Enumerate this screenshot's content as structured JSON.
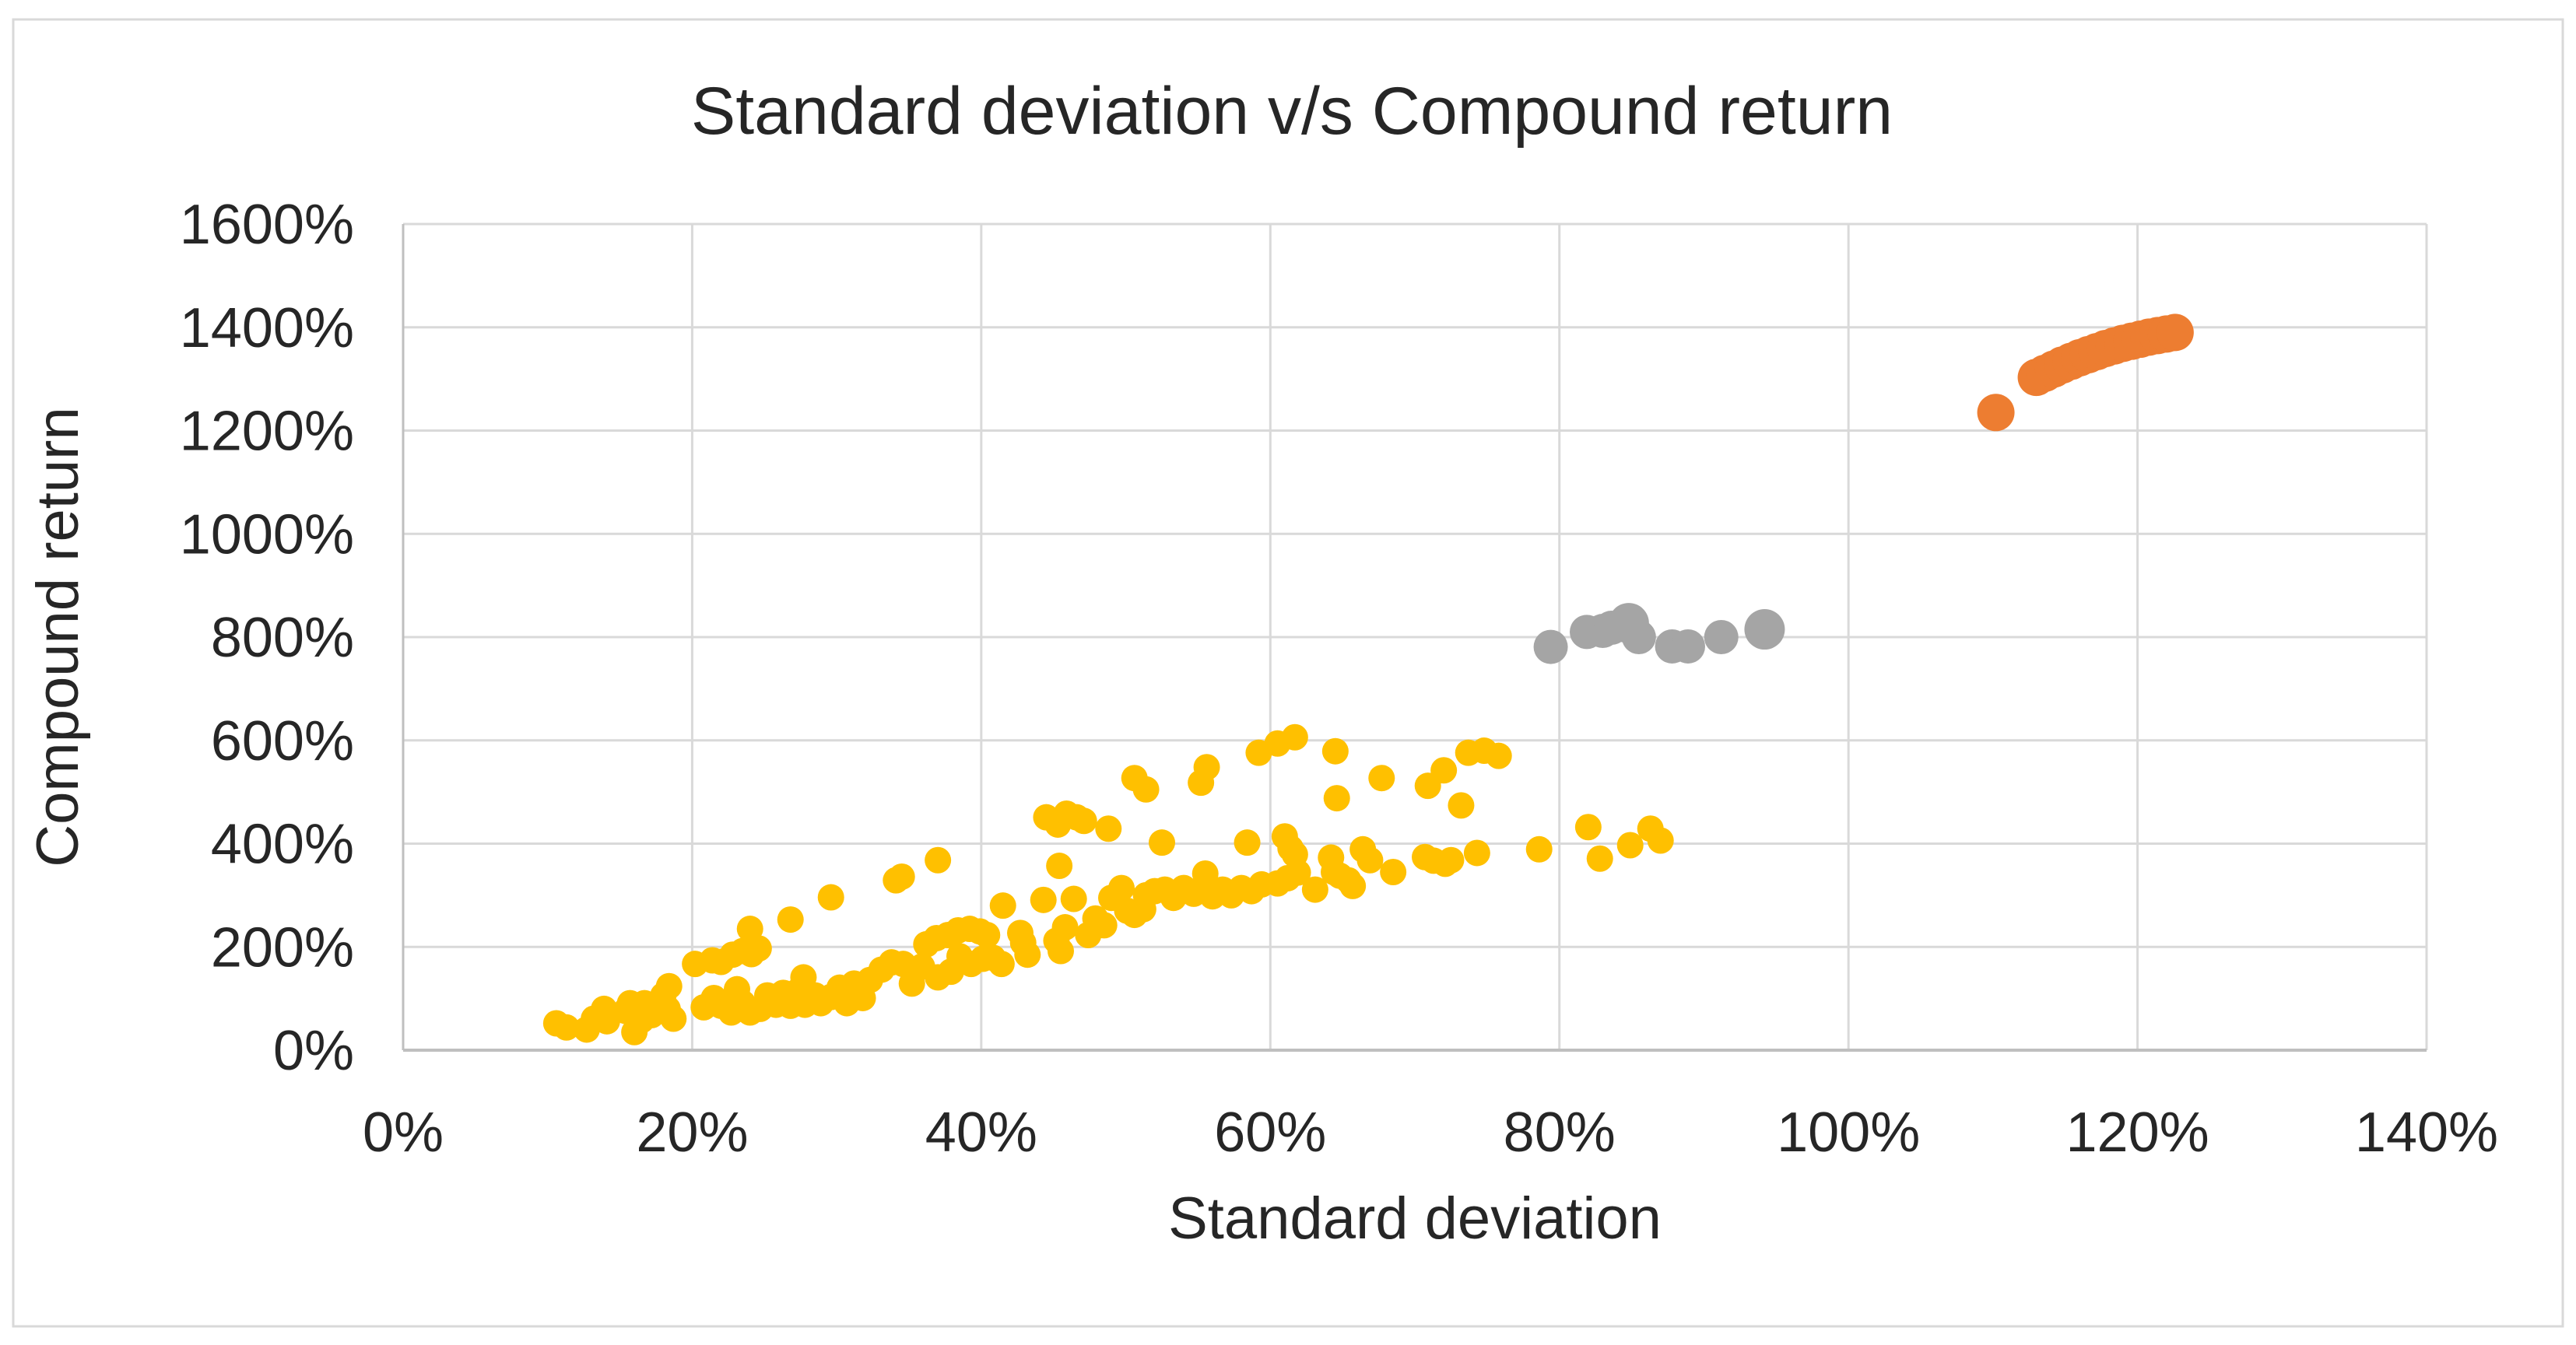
{
  "chart_data": {
    "type": "scatter",
    "title": "Standard deviation v/s Compound return",
    "xlabel": "Standard deviation",
    "ylabel": "Compound return",
    "xlim": [
      0,
      140
    ],
    "ylim": [
      0,
      1600
    ],
    "x_tick_step": 20,
    "y_tick_step": 200,
    "x_tick_labels": [
      "0%",
      "20%",
      "40%",
      "60%",
      "80%",
      "100%",
      "120%",
      "140%"
    ],
    "y_tick_labels": [
      "0%",
      "200%",
      "400%",
      "600%",
      "800%",
      "1000%",
      "1200%",
      "1400%",
      "1600%"
    ],
    "grid": true,
    "legend": "none",
    "colors": {
      "gridline": "#D9D9D9",
      "axis_line": "#BFBFBF",
      "chart_border": "#D9D9D9",
      "text": "#262626",
      "background": "#FFFFFF"
    },
    "series": [
      {
        "name": "gold-cluster",
        "color": "#FFC000",
        "marker_radius": 17,
        "points": [
          [
            10.6,
            52
          ],
          [
            11.3,
            44
          ],
          [
            12.7,
            40
          ],
          [
            13.2,
            61
          ],
          [
            13.9,
            80
          ],
          [
            14.1,
            56
          ],
          [
            15.4,
            76
          ],
          [
            15.7,
            91
          ],
          [
            16.0,
            35
          ],
          [
            16.5,
            58
          ],
          [
            16.7,
            91
          ],
          [
            17.2,
            68
          ],
          [
            18.0,
            106
          ],
          [
            18.3,
            80
          ],
          [
            18.4,
            124
          ],
          [
            18.7,
            61
          ],
          [
            20.2,
            167
          ],
          [
            20.8,
            83
          ],
          [
            21.4,
            174
          ],
          [
            21.5,
            101
          ],
          [
            22.0,
            171
          ],
          [
            22.0,
            86
          ],
          [
            22.7,
            73
          ],
          [
            22.8,
            185
          ],
          [
            23.1,
            118
          ],
          [
            23.5,
            192
          ],
          [
            23.5,
            91
          ],
          [
            24.0,
            235
          ],
          [
            24.0,
            73
          ],
          [
            24.1,
            186
          ],
          [
            24.6,
            197
          ],
          [
            24.7,
            80
          ],
          [
            25.2,
            106
          ],
          [
            25.8,
            88
          ],
          [
            26.3,
            111
          ],
          [
            26.8,
            253
          ],
          [
            26.8,
            86
          ],
          [
            27.3,
            114
          ],
          [
            27.7,
            141
          ],
          [
            27.8,
            88
          ],
          [
            28.5,
            106
          ],
          [
            28.9,
            91
          ],
          [
            29.6,
            296
          ],
          [
            29.6,
            103
          ],
          [
            30.2,
            121
          ],
          [
            30.7,
            91
          ],
          [
            31.2,
            129
          ],
          [
            31.8,
            101
          ],
          [
            32.3,
            136
          ],
          [
            33.1,
            156
          ],
          [
            33.8,
            170
          ],
          [
            34.1,
            329
          ],
          [
            34.5,
            336
          ],
          [
            34.6,
            167
          ],
          [
            35.2,
            129
          ],
          [
            35.9,
            162
          ],
          [
            36.2,
            205
          ],
          [
            36.9,
            217
          ],
          [
            37.0,
            141
          ],
          [
            37.0,
            368
          ],
          [
            37.7,
            223
          ],
          [
            37.9,
            152
          ],
          [
            38.4,
            232
          ],
          [
            38.5,
            182
          ],
          [
            39.2,
            235
          ],
          [
            39.3,
            167
          ],
          [
            39.9,
            230
          ],
          [
            40.1,
            177
          ],
          [
            40.4,
            223
          ],
          [
            40.8,
            179
          ],
          [
            41.4,
            167
          ],
          [
            41.5,
            280
          ],
          [
            42.7,
            227
          ],
          [
            42.9,
            208
          ],
          [
            43.2,
            185
          ],
          [
            44.3,
            291
          ],
          [
            44.5,
            451
          ],
          [
            45.2,
            212
          ],
          [
            45.3,
            437
          ],
          [
            45.5,
            192
          ],
          [
            45.8,
            238
          ],
          [
            45.4,
            357
          ],
          [
            45.9,
            458
          ],
          [
            46.4,
            293
          ],
          [
            46.6,
            451
          ],
          [
            47.1,
            444
          ],
          [
            47.4,
            223
          ],
          [
            47.9,
            255
          ],
          [
            48.5,
            242
          ],
          [
            48.8,
            429
          ],
          [
            49.0,
            295
          ],
          [
            49.7,
            314
          ],
          [
            50.1,
            270
          ],
          [
            50.6,
            262
          ],
          [
            50.6,
            527
          ],
          [
            51.2,
            273
          ],
          [
            51.4,
            505
          ],
          [
            51.4,
            300
          ],
          [
            52.0,
            308
          ],
          [
            52.5,
            402
          ],
          [
            52.7,
            311
          ],
          [
            53.3,
            295
          ],
          [
            54.0,
            314
          ],
          [
            54.7,
            303
          ],
          [
            55.3,
            314
          ],
          [
            55.5,
            342
          ],
          [
            55.2,
            518
          ],
          [
            55.6,
            548
          ],
          [
            56.0,
            298
          ],
          [
            56.7,
            311
          ],
          [
            57.3,
            300
          ],
          [
            58.0,
            314
          ],
          [
            58.4,
            402
          ],
          [
            58.7,
            308
          ],
          [
            59.2,
            576
          ],
          [
            59.4,
            321
          ],
          [
            60.5,
            594
          ],
          [
            60.5,
            323
          ],
          [
            61.0,
            414
          ],
          [
            61.2,
            333
          ],
          [
            61.4,
            391
          ],
          [
            61.7,
            606
          ],
          [
            61.7,
            379
          ],
          [
            61.9,
            344
          ],
          [
            63.1,
            311
          ],
          [
            64.2,
            373
          ],
          [
            64.4,
            345
          ],
          [
            64.5,
            579
          ],
          [
            64.6,
            488
          ],
          [
            64.8,
            338
          ],
          [
            65.4,
            329
          ],
          [
            65.7,
            318
          ],
          [
            66.4,
            389
          ],
          [
            66.9,
            368
          ],
          [
            67.7,
            527
          ],
          [
            68.5,
            345
          ],
          [
            70.7,
            374
          ],
          [
            70.9,
            512
          ],
          [
            71.3,
            367
          ],
          [
            72.0,
            542
          ],
          [
            72.1,
            361
          ],
          [
            72.5,
            368
          ],
          [
            73.2,
            474
          ],
          [
            73.7,
            576
          ],
          [
            74.3,
            382
          ],
          [
            74.8,
            580
          ],
          [
            75.8,
            570
          ],
          [
            78.6,
            389
          ],
          [
            82.0,
            432
          ],
          [
            82.8,
            371
          ],
          [
            84.9,
            397
          ],
          [
            86.3,
            429
          ],
          [
            87.0,
            406
          ]
        ]
      },
      {
        "name": "gray-cluster",
        "color": "#A5A5A5",
        "marker_radius": 22,
        "points": [
          [
            79.4,
            781
          ],
          [
            81.9,
            810
          ],
          [
            83.0,
            812
          ],
          [
            83.6,
            818
          ],
          [
            84.8,
            827,
            26
          ],
          [
            85.5,
            800
          ],
          [
            87.8,
            782
          ],
          [
            88.9,
            782
          ],
          [
            91.2,
            800
          ],
          [
            94.2,
            815,
            26
          ]
        ]
      },
      {
        "name": "orange-cluster",
        "color": "#ED7D31",
        "marker_radius": 24,
        "points": [
          [
            110.2,
            1235
          ],
          [
            113.0,
            1303
          ],
          [
            113.6,
            1311
          ],
          [
            114.2,
            1319
          ],
          [
            114.8,
            1327
          ],
          [
            115.4,
            1334
          ],
          [
            116.0,
            1341
          ],
          [
            116.6,
            1347
          ],
          [
            117.2,
            1353
          ],
          [
            117.8,
            1359
          ],
          [
            118.4,
            1364
          ],
          [
            119.0,
            1369
          ],
          [
            119.6,
            1373
          ],
          [
            120.2,
            1377
          ],
          [
            120.8,
            1381
          ],
          [
            121.4,
            1384
          ],
          [
            122.0,
            1387
          ],
          [
            122.6,
            1390
          ]
        ]
      }
    ]
  }
}
